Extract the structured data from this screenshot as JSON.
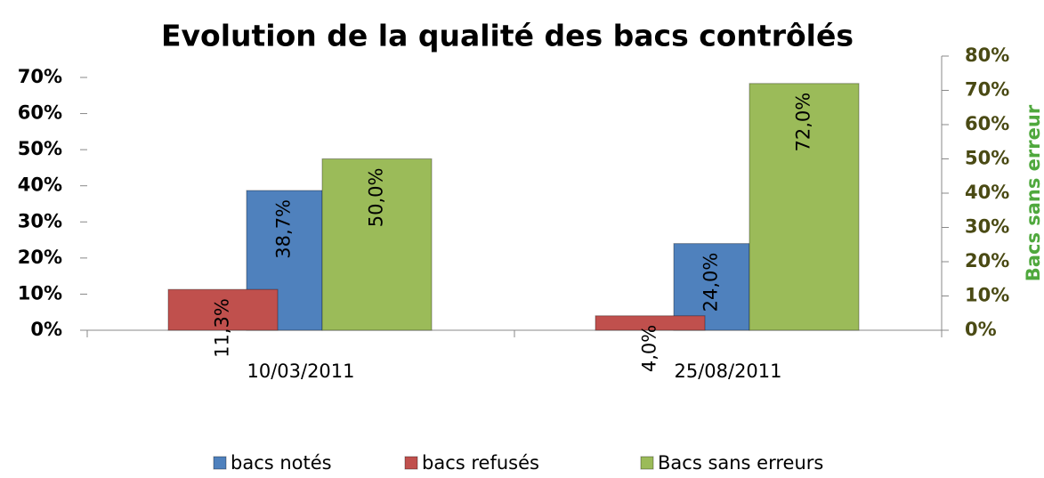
{
  "chart_data": {
    "type": "bar",
    "title": "Evolution de la qualité des bacs contrôlés",
    "y2label": "Bacs sans erreur",
    "categories": [
      "10/03/2011",
      "25/08/2011"
    ],
    "series": [
      {
        "name": "bacs notés",
        "color": "#4f81bd",
        "values": [
          38.7,
          24.0
        ],
        "value_labels": [
          "38,7%",
          "24,0%"
        ]
      },
      {
        "name": "bacs refusés",
        "color": "#c0504d",
        "values": [
          11.3,
          4.0
        ],
        "value_labels": [
          "11,3%",
          "4,0%"
        ]
      },
      {
        "name": "Bacs sans erreurs",
        "color": "#9bbb59",
        "axis": "y2",
        "values": [
          50.0,
          72.0
        ],
        "value_labels": [
          "50,0%",
          "72,0%"
        ]
      }
    ],
    "ylim": [
      0,
      70
    ],
    "yticks": [
      {
        "value": 0,
        "label": "0%"
      },
      {
        "value": 10,
        "label": "10%"
      },
      {
        "value": 20,
        "label": "20%"
      },
      {
        "value": 30,
        "label": "30%"
      },
      {
        "value": 40,
        "label": "40%"
      },
      {
        "value": 50,
        "label": "50%"
      },
      {
        "value": 60,
        "label": "60%"
      },
      {
        "value": 70,
        "label": "70%"
      }
    ],
    "y2lim": [
      0,
      80
    ],
    "y2ticks": [
      {
        "value": 0,
        "label": "0%"
      },
      {
        "value": 10,
        "label": "10%"
      },
      {
        "value": 20,
        "label": "20%"
      },
      {
        "value": 30,
        "label": "30%"
      },
      {
        "value": 40,
        "label": "40%"
      },
      {
        "value": 50,
        "label": "50%"
      },
      {
        "value": 60,
        "label": "60%"
      },
      {
        "value": 70,
        "label": "70%"
      },
      {
        "value": 80,
        "label": "80%"
      }
    ],
    "legend": "bottom"
  }
}
